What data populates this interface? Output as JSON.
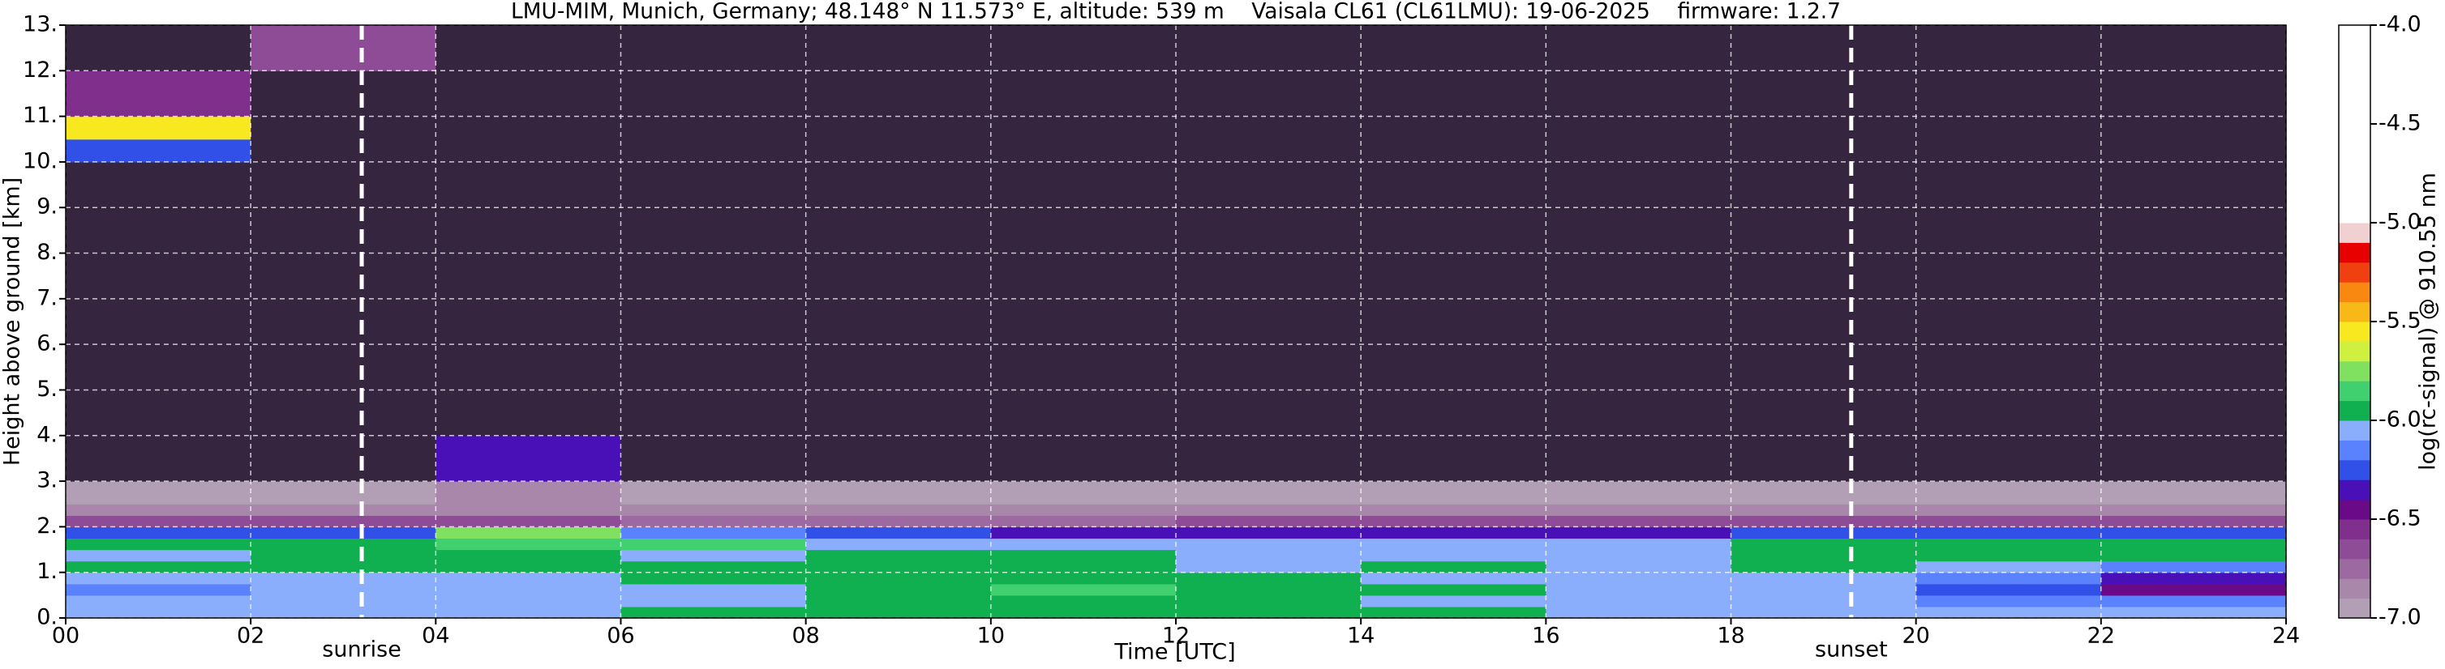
{
  "chart_data": {
    "type": "heatmap",
    "title": "LMU-MIM, Munich, Germany; 48.148° N 11.573° E, altitude: 539 m    Vaisala CL61 (CL61LMU): 19-06-2025    firmware: 1.2.7",
    "xlabel": "Time [UTC]",
    "ylabel": "Height above ground [km]",
    "x": [
      0,
      2,
      4,
      6,
      8,
      10,
      12,
      14,
      16,
      18,
      20,
      22,
      24
    ],
    "y": [
      0,
      0.25,
      0.5,
      0.75,
      1,
      1.25,
      1.5,
      1.75,
      2,
      2.25,
      2.5,
      3,
      4,
      5,
      6,
      7,
      8,
      9,
      10,
      10.5,
      11,
      12,
      13
    ],
    "z": [
      [
        -6.1,
        -6.1,
        -6.05,
        -6.0,
        -6.0,
        -6.0,
        -6.0,
        -6.0,
        -6.05,
        -6.1,
        -6.1,
        -6.1
      ],
      [
        -6.1,
        -6.1,
        -6.1,
        -6.1,
        -6.0,
        -5.95,
        -6.0,
        -6.05,
        -6.1,
        -6.1,
        -6.15,
        -6.2
      ],
      [
        -6.15,
        -6.1,
        -6.1,
        -6.05,
        -5.95,
        -5.9,
        -5.95,
        -6.0,
        -6.1,
        -6.1,
        -6.3,
        -6.45
      ],
      [
        -6.1,
        -6.1,
        -6.05,
        -6.0,
        -5.95,
        -5.95,
        -6.0,
        -6.05,
        -6.1,
        -6.1,
        -6.2,
        -6.35
      ],
      [
        -6.0,
        -6.0,
        -5.95,
        -6.0,
        -6.0,
        -5.95,
        -6.05,
        -6.0,
        -6.1,
        -6.0,
        -6.1,
        -6.15
      ],
      [
        -6.05,
        -6.0,
        -6.0,
        -6.05,
        -6.0,
        -6.0,
        -6.05,
        -6.1,
        -6.1,
        -5.95,
        -6.0,
        -6.0
      ],
      [
        -6.0,
        -5.95,
        -5.9,
        -5.85,
        -6.1,
        -6.05,
        -6.1,
        -6.1,
        -6.1,
        -6.0,
        -5.95,
        -5.95
      ],
      [
        -6.3,
        -6.3,
        -5.75,
        -6.2,
        -6.3,
        -6.35,
        -6.35,
        -6.4,
        -6.4,
        -6.3,
        -6.3,
        -6.25
      ],
      [
        -6.65,
        -6.65,
        -6.7,
        -6.75,
        -6.75,
        -6.75,
        -6.7,
        -6.7,
        -6.7,
        -6.65,
        -6.65,
        -6.65
      ],
      [
        -6.85,
        -6.85,
        -6.85,
        -6.9,
        -6.9,
        -6.9,
        -6.9,
        -6.9,
        -6.85,
        -6.85,
        -6.85,
        -6.85
      ],
      [
        -6.95,
        -6.95,
        -6.9,
        -6.95,
        -6.95,
        -6.95,
        -6.95,
        -6.95,
        -6.95,
        -6.95,
        -6.95,
        -6.95
      ],
      [
        -7.2,
        -7.2,
        -6.4,
        -7.2,
        -7.2,
        -7.2,
        -7.2,
        -7.2,
        -7.2,
        -7.2,
        -7.2,
        -7.2
      ],
      [
        -7.2,
        -7.2,
        -7.2,
        -7.2,
        -7.2,
        -7.2,
        -7.2,
        -7.2,
        -7.2,
        -7.2,
        -7.2,
        -7.2
      ],
      [
        -7.2,
        -7.2,
        -7.2,
        -7.2,
        -7.2,
        -7.2,
        -7.2,
        -7.2,
        -7.2,
        -7.2,
        -7.2,
        -7.2
      ],
      [
        -7.2,
        -7.2,
        -7.2,
        -7.2,
        -7.2,
        -7.2,
        -7.2,
        -7.2,
        -7.2,
        -7.2,
        -7.2,
        -7.2
      ],
      [
        -7.2,
        -7.2,
        -7.2,
        -7.2,
        -7.2,
        -7.2,
        -7.2,
        -7.2,
        -7.2,
        -7.2,
        -7.2,
        -7.2
      ],
      [
        -7.2,
        -7.2,
        -7.2,
        -7.2,
        -7.2,
        -7.2,
        -7.2,
        -7.2,
        -7.2,
        -7.2,
        -7.2,
        -7.2
      ],
      [
        -7.2,
        -7.2,
        -7.2,
        -7.2,
        -7.2,
        -7.2,
        -7.2,
        -7.2,
        -7.2,
        -7.2,
        -7.2,
        -7.2
      ],
      [
        -6.3,
        -7.2,
        -7.2,
        -7.2,
        -7.2,
        -7.2,
        -7.2,
        -7.2,
        -7.2,
        -7.2,
        -7.2,
        -7.2
      ],
      [
        -5.6,
        -7.2,
        -7.2,
        -7.2,
        -7.2,
        -7.2,
        -7.2,
        -7.2,
        -7.2,
        -7.2,
        -7.2,
        -7.2
      ],
      [
        -6.6,
        -7.2,
        -7.2,
        -7.2,
        -7.2,
        -7.2,
        -7.2,
        -7.2,
        -7.2,
        -7.2,
        -7.2,
        -7.2
      ],
      [
        -7.2,
        -6.7,
        -7.2,
        -7.2,
        -7.2,
        -7.2,
        -7.2,
        -7.2,
        -7.2,
        -7.2,
        -7.2,
        -7.2
      ]
    ],
    "xlim": [
      0,
      24
    ],
    "ylim": [
      0,
      13
    ],
    "xticks": [
      {
        "value": 0,
        "label": "00"
      },
      {
        "value": 2,
        "label": "02"
      },
      {
        "value": 4,
        "label": "04"
      },
      {
        "value": 6,
        "label": "06"
      },
      {
        "value": 8,
        "label": "08"
      },
      10,
      12,
      14,
      16,
      18,
      20,
      22,
      24
    ],
    "yticks": [
      {
        "value": 0,
        "label": "0."
      },
      {
        "value": 1,
        "label": "1."
      },
      {
        "value": 2,
        "label": "2."
      },
      {
        "value": 3,
        "label": "3."
      },
      {
        "value": 4,
        "label": "4."
      },
      {
        "value": 5,
        "label": "5."
      },
      {
        "value": 6,
        "label": "6."
      },
      {
        "value": 7,
        "label": "7."
      },
      {
        "value": 8,
        "label": "8."
      },
      {
        "value": 9,
        "label": "9."
      },
      {
        "value": 10,
        "label": "10."
      },
      {
        "value": 11,
        "label": "11."
      },
      {
        "value": 12,
        "label": "12."
      },
      {
        "value": 13,
        "label": "13."
      }
    ],
    "grid": true,
    "annotations": [
      {
        "label": "sunrise",
        "x": 3.2
      },
      {
        "label": "sunset",
        "x": 19.3
      }
    ],
    "colorbar": {
      "label": "log(rc-signal) @ 910.55 nm",
      "under_color": "#35253f",
      "bounds": [
        -7.0,
        -6.9,
        -6.8,
        -6.7,
        -6.6,
        -6.5,
        -6.4,
        -6.3,
        -6.2,
        -6.1,
        -6.0,
        -5.9,
        -5.8,
        -5.7,
        -5.6,
        -5.5,
        -5.4,
        -5.3,
        -5.2,
        -5.1,
        -5.0,
        -4.0
      ],
      "colors": [
        "#b39fb5",
        "#a987ab",
        "#9c6aa0",
        "#8e4c96",
        "#80308c",
        "#6a0a88",
        "#4a10b8",
        "#3050e8",
        "#5a82ff",
        "#8aaefc",
        "#10b050",
        "#40d070",
        "#80e060",
        "#d0f040",
        "#f8e820",
        "#f8b818",
        "#f88810",
        "#f04010",
        "#e80000",
        "#f0d0d0",
        "#ffffff"
      ],
      "lim": [
        -7.0,
        -4.0
      ],
      "ticks": [
        {
          "value": -7.0,
          "label": "-7.0"
        },
        -6.5,
        {
          "value": -6.0,
          "label": "-6.0"
        },
        -5.5,
        {
          "value": -5.0,
          "label": "-5.0"
        },
        -4.5,
        {
          "value": -4.0,
          "label": "-4.0"
        }
      ]
    }
  }
}
